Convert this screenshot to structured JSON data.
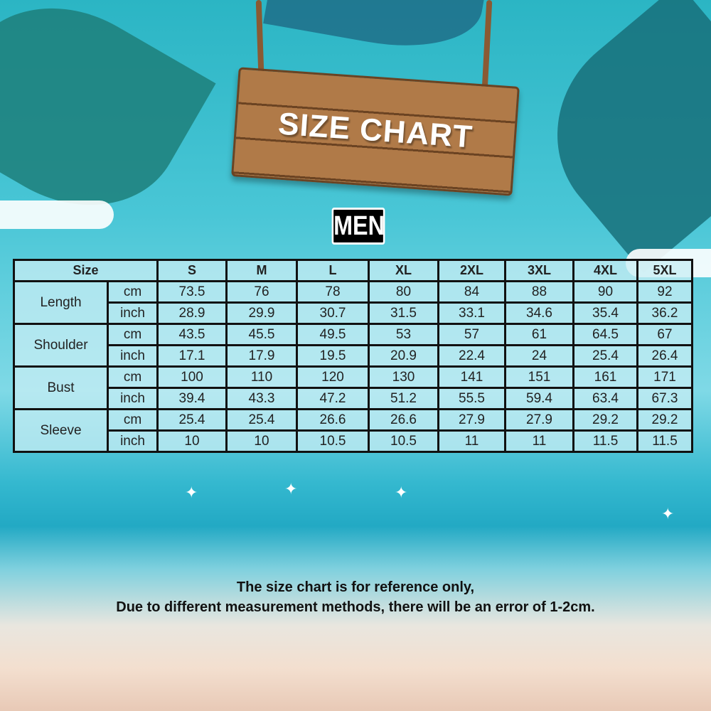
{
  "sign_title": "SIZE CHART",
  "section_label": "MEN",
  "table": {
    "size_header": "Size",
    "sizes": [
      "S",
      "M",
      "L",
      "XL",
      "2XL",
      "3XL",
      "4XL",
      "5XL"
    ],
    "measurements": [
      {
        "name": "Length",
        "rows": [
          {
            "unit": "cm",
            "values": [
              "73.5",
              "76",
              "78",
              "80",
              "84",
              "88",
              "90",
              "92"
            ]
          },
          {
            "unit": "inch",
            "values": [
              "28.9",
              "29.9",
              "30.7",
              "31.5",
              "33.1",
              "34.6",
              "35.4",
              "36.2"
            ]
          }
        ]
      },
      {
        "name": "Shoulder",
        "rows": [
          {
            "unit": "cm",
            "values": [
              "43.5",
              "45.5",
              "49.5",
              "53",
              "57",
              "61",
              "64.5",
              "67"
            ]
          },
          {
            "unit": "inch",
            "values": [
              "17.1",
              "17.9",
              "19.5",
              "20.9",
              "22.4",
              "24",
              "25.4",
              "26.4"
            ]
          }
        ]
      },
      {
        "name": "Bust",
        "rows": [
          {
            "unit": "cm",
            "values": [
              "100",
              "110",
              "120",
              "130",
              "141",
              "151",
              "161",
              "171"
            ]
          },
          {
            "unit": "inch",
            "values": [
              "39.4",
              "43.3",
              "47.2",
              "51.2",
              "55.5",
              "59.4",
              "63.4",
              "67.3"
            ]
          }
        ]
      },
      {
        "name": "Sleeve",
        "rows": [
          {
            "unit": "cm",
            "values": [
              "25.4",
              "25.4",
              "26.6",
              "26.6",
              "27.9",
              "27.9",
              "29.2",
              "29.2"
            ]
          },
          {
            "unit": "inch",
            "values": [
              "10",
              "10",
              "10.5",
              "10.5",
              "11",
              "11",
              "11.5",
              "11.5"
            ]
          }
        ]
      }
    ]
  },
  "note": {
    "line1": "The size chart is for reference only,",
    "line2": "Due to different measurement methods, there will be an error of 1-2cm."
  },
  "colors": {
    "table_border": "#111111",
    "cell_bg": "#c8eef4",
    "sign_wood": "#b07a48"
  }
}
